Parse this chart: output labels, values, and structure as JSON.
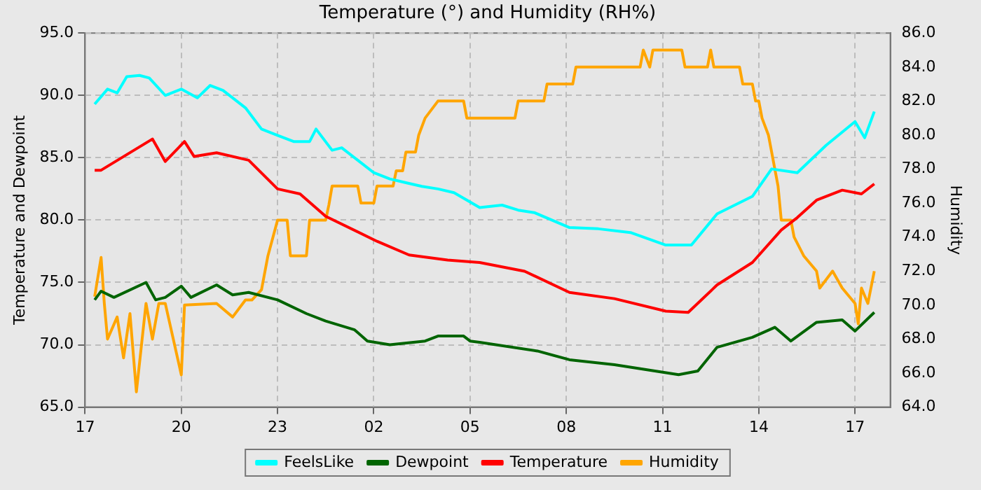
{
  "chart_data": {
    "type": "line",
    "title": "Temperature (°) and Humidity (RH%)",
    "ylabel": "Temperature and Dewpoint",
    "y2label": "Humidity",
    "xlim": [
      "--01-01T17:00",
      "--01-02T18:06"
    ],
    "xticks": [
      {
        "value": "--01-01T17:00",
        "label": "17"
      },
      {
        "value": "--01-01T20:00",
        "label": "20"
      },
      {
        "value": "--01-01T23:00",
        "label": "23"
      },
      {
        "value": "--01-02T02:00",
        "label": "02"
      },
      {
        "value": "--01-02T05:00",
        "label": "05"
      },
      {
        "value": "--01-02T08:00",
        "label": "08"
      },
      {
        "value": "--01-02T11:00",
        "label": "11"
      },
      {
        "value": "--01-02T14:00",
        "label": "14"
      },
      {
        "value": "--01-02T17:00",
        "label": "17"
      }
    ],
    "ylim": [
      65,
      95
    ],
    "yticks": [
      {
        "value": 65,
        "label": "65.0"
      },
      {
        "value": 70,
        "label": "70.0"
      },
      {
        "value": 75,
        "label": "75.0"
      },
      {
        "value": 80,
        "label": "80.0"
      },
      {
        "value": 85,
        "label": "85.0"
      },
      {
        "value": 90,
        "label": "90.0"
      },
      {
        "value": 95,
        "label": "95.0"
      }
    ],
    "y2lim": [
      64,
      86
    ],
    "y2ticks": [
      {
        "value": 64,
        "label": "64.0"
      },
      {
        "value": 66,
        "label": "66.0"
      },
      {
        "value": 68,
        "label": "68.0"
      },
      {
        "value": 70,
        "label": "70.0"
      },
      {
        "value": 72,
        "label": "72.0"
      },
      {
        "value": 74,
        "label": "74.0"
      },
      {
        "value": 76,
        "label": "76.0"
      },
      {
        "value": 78,
        "label": "78.0"
      },
      {
        "value": 80,
        "label": "80.0"
      },
      {
        "value": 82,
        "label": "82.0"
      },
      {
        "value": 84,
        "label": "84.0"
      },
      {
        "value": 86,
        "label": "86.0"
      }
    ],
    "grid": true,
    "legend": "bottom",
    "marker": "none",
    "line_style": "solid",
    "series": [
      {
        "name": "FeelsLike",
        "color": "#00ffff",
        "x": [
          "--01-01T17:18",
          "--01-01T17:42",
          "--01-01T18:00",
          "--01-01T18:18",
          "--01-01T18:42",
          "--01-01T19:00",
          "--01-01T19:30",
          "--01-01T20:00",
          "--01-01T20:30",
          "--01-01T20:54",
          "--01-01T21:18",
          "--01-01T21:42",
          "--01-01T22:00",
          "--01-01T22:30",
          "--01-01T23:00",
          "--01-01T23:30",
          "--01-02T00:00",
          "--01-02T00:12",
          "--01-02T00:42",
          "--01-02T01:00",
          "--01-02T01:30",
          "--01-02T02:00",
          "--01-02T02:30",
          "--01-02T03:00",
          "--01-02T03:30",
          "--01-02T04:00",
          "--01-02T04:30",
          "--01-02T05:18",
          "--01-02T06:00",
          "--01-02T06:30",
          "--01-02T07:00",
          "--01-02T08:06",
          "--01-02T09:00",
          "--01-02T10:00",
          "--01-02T11:06",
          "--01-02T11:54",
          "--01-02T12:42",
          "--01-02T13:48",
          "--01-02T14:24",
          "--01-02T15:12",
          "--01-02T16:06",
          "--01-02T17:00",
          "--01-02T17:18",
          "--01-02T17:36"
        ],
        "values": [
          89.3,
          90.5,
          90.2,
          91.5,
          91.6,
          91.4,
          90.0,
          90.5,
          89.8,
          90.8,
          90.4,
          89.6,
          89.0,
          87.3,
          86.8,
          86.3,
          86.3,
          87.3,
          85.6,
          85.8,
          84.8,
          83.8,
          83.3,
          83.0,
          82.7,
          82.5,
          82.2,
          81.0,
          81.2,
          80.8,
          80.6,
          79.4,
          79.3,
          79.0,
          78.0,
          78.0,
          80.5,
          81.9,
          84.1,
          83.8,
          86.0,
          87.9,
          86.6,
          88.7
        ]
      },
      {
        "name": "Dewpoint",
        "color": "#006400",
        "x": [
          "--01-01T17:18",
          "--01-01T17:30",
          "--01-01T17:54",
          "--01-01T18:54",
          "--01-01T19:12",
          "--01-01T19:30",
          "--01-01T20:00",
          "--01-01T20:18",
          "--01-01T21:06",
          "--01-01T21:36",
          "--01-01T22:06",
          "--01-01T23:00",
          "--01-01T23:54",
          "--01-02T00:30",
          "--01-02T01:24",
          "--01-02T01:48",
          "--01-02T02:30",
          "--01-02T03:36",
          "--01-02T04:00",
          "--01-02T04:48",
          "--01-02T05:00",
          "--01-02T05:18",
          "--01-02T07:06",
          "--01-02T08:06",
          "--01-02T09:30",
          "--01-02T11:30",
          "--01-02T12:06",
          "--01-02T12:42",
          "--01-02T13:48",
          "--01-02T14:30",
          "--01-02T15:00",
          "--01-02T15:48",
          "--01-02T16:36",
          "--01-02T17:00",
          "--01-02T17:36"
        ],
        "values": [
          73.6,
          74.3,
          73.8,
          75.0,
          73.6,
          73.8,
          74.7,
          73.8,
          74.8,
          74.0,
          74.2,
          73.6,
          72.5,
          71.9,
          71.2,
          70.3,
          70.0,
          70.3,
          70.7,
          70.7,
          70.3,
          70.2,
          69.5,
          68.8,
          68.4,
          67.6,
          67.9,
          69.8,
          70.6,
          71.4,
          70.3,
          71.8,
          72.0,
          71.1,
          72.6
        ]
      },
      {
        "name": "Temperature",
        "color": "#ff0000",
        "x": [
          "--01-01T17:18",
          "--01-01T17:30",
          "--01-01T19:06",
          "--01-01T19:30",
          "--01-01T20:06",
          "--01-01T20:24",
          "--01-01T21:06",
          "--01-01T22:06",
          "--01-01T23:00",
          "--01-01T23:42",
          "--01-02T00:30",
          "--01-02T02:06",
          "--01-02T03:06",
          "--01-02T04:18",
          "--01-02T05:18",
          "--01-02T06:42",
          "--01-02T08:06",
          "--01-02T09:30",
          "--01-02T11:06",
          "--01-02T11:48",
          "--01-02T12:42",
          "--01-02T13:48",
          "--01-02T14:42",
          "--01-02T15:12",
          "--01-02T15:48",
          "--01-02T16:36",
          "--01-02T17:12",
          "--01-02T17:36"
        ],
        "values": [
          84.0,
          84.0,
          86.5,
          84.7,
          86.3,
          85.1,
          85.4,
          84.8,
          82.5,
          82.1,
          80.3,
          78.3,
          77.2,
          76.8,
          76.6,
          75.9,
          74.2,
          73.7,
          72.7,
          72.6,
          74.8,
          76.6,
          79.2,
          80.2,
          81.6,
          82.4,
          82.1,
          82.9
        ]
      },
      {
        "name": "Humidity",
        "color": "#ffa500",
        "axis": "y2",
        "x": [
          "--01-01T17:18",
          "--01-01T17:30",
          "--01-01T17:36",
          "--01-01T17:42",
          "--01-01T18:00",
          "--01-01T18:12",
          "--01-01T18:24",
          "--01-01T18:36",
          "--01-01T18:54",
          "--01-01T19:06",
          "--01-01T19:18",
          "--01-01T19:30",
          "--01-01T20:00",
          "--01-01T20:06",
          "--01-01T21:06",
          "--01-01T21:36",
          "--01-01T22:00",
          "--01-01T22:12",
          "--01-01T22:30",
          "--01-01T22:42",
          "--01-01T23:00",
          "--01-01T23:18",
          "--01-01T23:24",
          "--01-01T23:54",
          "--01-02T00:00",
          "--01-02T00:30",
          "--01-02T00:36",
          "--01-02T00:42",
          "--01-02T01:30",
          "--01-02T01:36",
          "--01-02T02:00",
          "--01-02T02:06",
          "--01-02T02:36",
          "--01-02T02:42",
          "--01-02T02:54",
          "--01-02T03:00",
          "--01-02T03:18",
          "--01-02T03:24",
          "--01-02T03:36",
          "--01-02T04:00",
          "--01-02T04:48",
          "--01-02T04:54",
          "--01-02T06:24",
          "--01-02T06:30",
          "--01-02T07:18",
          "--01-02T07:24",
          "--01-02T08:12",
          "--01-02T08:18",
          "--01-02T10:18",
          "--01-02T10:24",
          "--01-02T10:36",
          "--01-02T10:42",
          "--01-02T11:36",
          "--01-02T11:42",
          "--01-02T12:24",
          "--01-02T12:30",
          "--01-02T12:36",
          "--01-02T12:42",
          "--01-02T13:24",
          "--01-02T13:30",
          "--01-02T13:48",
          "--01-02T13:54",
          "--01-02T14:00",
          "--01-02T14:06",
          "--01-02T14:18",
          "--01-02T14:24",
          "--01-02T14:30",
          "--01-02T14:36",
          "--01-02T14:42",
          "--01-02T15:00",
          "--01-02T15:06",
          "--01-02T15:24",
          "--01-02T15:48",
          "--01-02T15:54",
          "--01-02T16:18",
          "--01-02T16:36",
          "--01-02T17:00",
          "--01-02T17:06",
          "--01-02T17:12",
          "--01-02T17:24",
          "--01-02T17:36"
        ],
        "values": [
          70.5,
          72.8,
          70.1,
          68.0,
          69.3,
          66.9,
          69.5,
          64.9,
          70.1,
          68.0,
          70.1,
          70.1,
          65.9,
          70.0,
          70.1,
          69.3,
          70.3,
          70.3,
          70.9,
          72.9,
          75.0,
          75.0,
          72.9,
          72.9,
          75.0,
          75.0,
          75.9,
          77.0,
          77.0,
          76.0,
          76.0,
          77.0,
          77.0,
          77.9,
          77.9,
          79.0,
          79.0,
          80.0,
          81.0,
          82.0,
          82.0,
          81.0,
          81.0,
          82.0,
          82.0,
          83.0,
          83.0,
          84.0,
          84.0,
          85.0,
          84.0,
          85.0,
          85.0,
          84.0,
          84.0,
          85.0,
          84.0,
          84.0,
          84.0,
          83.0,
          83.0,
          82.0,
          82.0,
          81.0,
          80.0,
          79.0,
          78.0,
          77.0,
          75.0,
          75.0,
          74.0,
          72.9,
          72.0,
          71.0,
          72.0,
          71.0,
          70.1,
          68.9,
          71.0,
          70.1,
          72.0
        ]
      }
    ]
  }
}
